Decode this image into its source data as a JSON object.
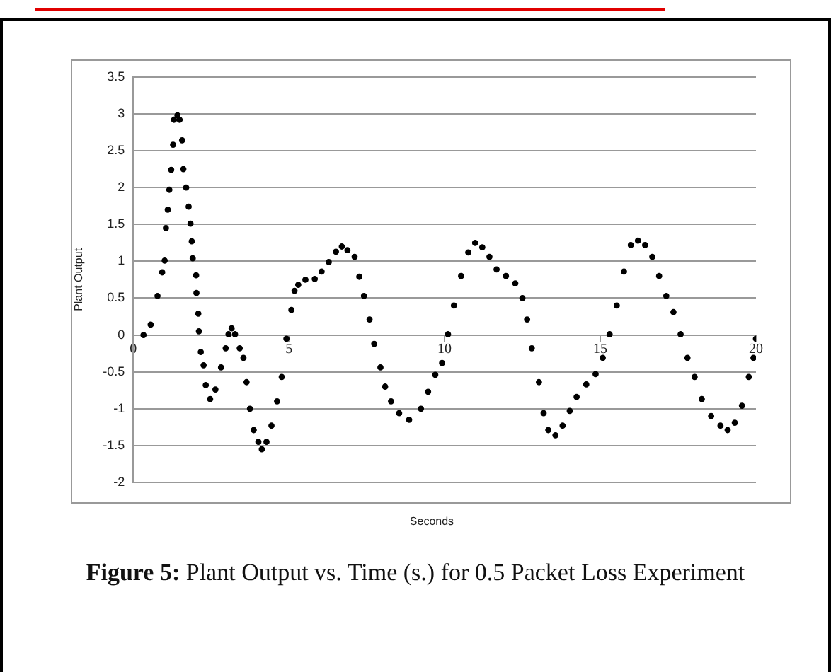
{
  "chart_data": {
    "type": "scatter",
    "xlabel": "Seconds",
    "ylabel": "Plant Output",
    "annotations": [
      "Figure 5:",
      "Plant Output vs. Time (s.) for 0.5 Packet Loss Experiment"
    ],
    "xlim": [
      0,
      20
    ],
    "xticks": [
      0,
      5,
      10,
      15,
      20
    ],
    "ylim": [
      -2,
      3.5
    ],
    "yticks": [
      -2,
      -1.5,
      -1,
      -0.5,
      0,
      0.5,
      1,
      1.5,
      2,
      2.5,
      3,
      3.5
    ],
    "grid": "y",
    "legend": false,
    "marker": "circle",
    "series": [
      {
        "color": "#000000",
        "x": [
          0.33,
          0.56,
          0.78,
          0.93,
          1.01,
          1.05,
          1.11,
          1.16,
          1.22,
          1.28,
          1.31,
          1.42,
          1.49,
          1.57,
          1.61,
          1.7,
          1.78,
          1.84,
          1.88,
          1.91,
          2.02,
          2.03,
          2.09,
          2.11,
          2.17,
          2.26,
          2.33,
          2.47,
          2.64,
          2.82,
          2.97,
          3.06,
          3.16,
          3.27,
          3.42,
          3.54,
          3.64,
          3.75,
          3.87,
          4.02,
          4.13,
          4.28,
          4.44,
          4.62,
          4.77,
          4.92,
          5.08,
          5.18,
          5.3,
          5.53,
          5.83,
          6.05,
          6.28,
          6.51,
          6.7,
          6.88,
          7.11,
          7.26,
          7.41,
          7.59,
          7.74,
          7.94,
          8.09,
          8.28,
          8.54,
          8.86,
          9.24,
          9.47,
          9.7,
          9.92,
          10.11,
          10.3,
          10.53,
          10.76,
          10.98,
          11.21,
          11.44,
          11.67,
          11.97,
          12.27,
          12.5,
          12.65,
          12.8,
          13.03,
          13.18,
          13.33,
          13.56,
          13.79,
          14.02,
          14.24,
          14.55,
          14.85,
          15.08,
          15.3,
          15.53,
          15.76,
          15.98,
          16.21,
          16.44,
          16.67,
          16.89,
          17.12,
          17.35,
          17.58,
          17.8,
          18.03,
          18.26,
          18.56,
          18.86,
          19.09,
          19.32,
          19.55,
          19.77,
          19.92,
          20
        ],
        "values": [
          0,
          0.14,
          0.53,
          0.85,
          1.01,
          1.45,
          1.7,
          1.97,
          2.24,
          2.58,
          2.92,
          2.98,
          2.92,
          2.64,
          2.25,
          2,
          1.74,
          1.51,
          1.27,
          1.04,
          0.81,
          0.57,
          0.29,
          0.05,
          -0.23,
          -0.41,
          -0.68,
          -0.87,
          -0.74,
          -0.44,
          -0.18,
          0.01,
          0.09,
          0.01,
          -0.18,
          -0.31,
          -0.64,
          -1,
          -1.29,
          -1.45,
          -1.55,
          -1.45,
          -1.23,
          -0.9,
          -0.57,
          -0.05,
          0.34,
          0.6,
          0.68,
          0.75,
          0.76,
          0.86,
          0.99,
          1.13,
          1.2,
          1.15,
          1.06,
          0.79,
          0.53,
          0.21,
          -0.12,
          -0.44,
          -0.7,
          -0.9,
          -1.06,
          -1.15,
          -1,
          -0.77,
          -0.54,
          -0.38,
          0.01,
          0.4,
          0.8,
          1.12,
          1.25,
          1.19,
          1.06,
          0.89,
          0.8,
          0.7,
          0.5,
          0.21,
          -0.18,
          -0.64,
          -1.06,
          -1.29,
          -1.36,
          -1.23,
          -1.03,
          -0.84,
          -0.67,
          -0.53,
          -0.31,
          0.01,
          0.4,
          0.86,
          1.22,
          1.28,
          1.22,
          1.06,
          0.8,
          0.53,
          0.31,
          0.01,
          -0.31,
          -0.57,
          -0.87,
          -1.1,
          -1.23,
          -1.29,
          -1.19,
          -0.96,
          -0.57,
          -0.31,
          -0.05
        ]
      }
    ]
  }
}
